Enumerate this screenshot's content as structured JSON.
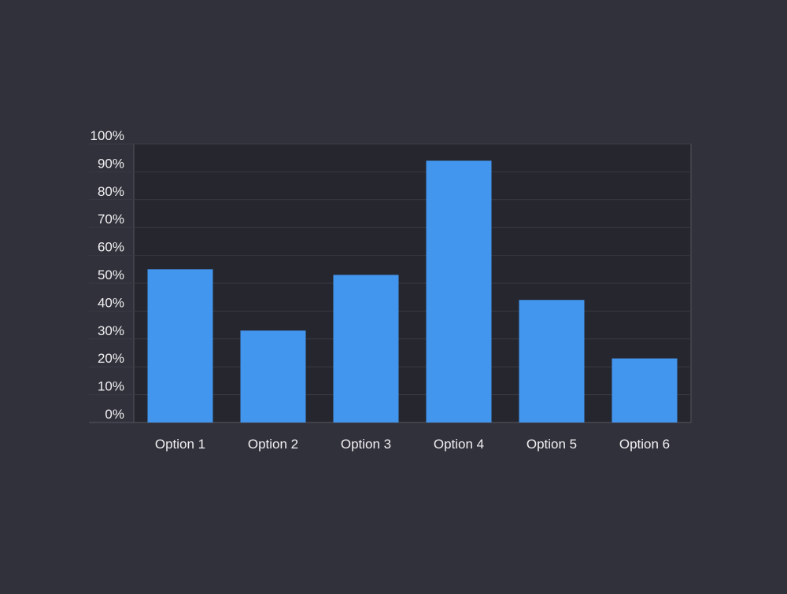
{
  "colors": {
    "page_background": "#31313b",
    "plot_background": "#26262e",
    "bar": "#4396ee",
    "grid": "#3a3a44",
    "axis": "#55555f",
    "text": "#f0f0f2"
  },
  "chart_data": {
    "type": "bar",
    "title": "",
    "xlabel": "",
    "ylabel": "",
    "categories": [
      "Option 1",
      "Option 2",
      "Option 3",
      "Option 4",
      "Option 5",
      "Option 6"
    ],
    "values": [
      55,
      33,
      53,
      94,
      44,
      23
    ],
    "ylim": [
      0,
      100
    ],
    "yticks": [
      {
        "value": 0,
        "label": "0%"
      },
      {
        "value": 10,
        "label": "10%"
      },
      {
        "value": 20,
        "label": "20%"
      },
      {
        "value": 30,
        "label": "30%"
      },
      {
        "value": 40,
        "label": "40%"
      },
      {
        "value": 50,
        "label": "50%"
      },
      {
        "value": 60,
        "label": "60%"
      },
      {
        "value": 70,
        "label": "70%"
      },
      {
        "value": 80,
        "label": "80%"
      },
      {
        "value": 90,
        "label": "90%"
      },
      {
        "value": 100,
        "label": "100%"
      }
    ],
    "grid": true,
    "legend": "none"
  }
}
